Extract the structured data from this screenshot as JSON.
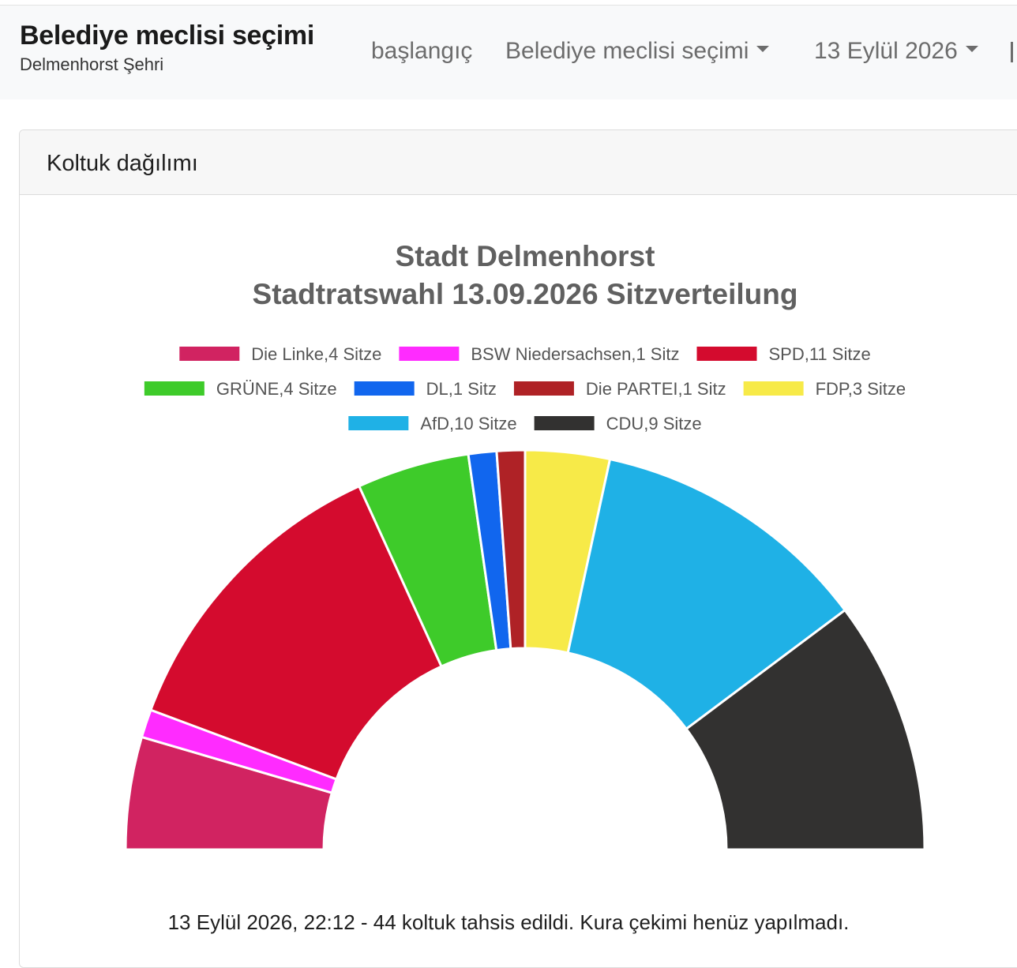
{
  "header": {
    "title": "Belediye meclisi seçimi",
    "subtitle": "Delmenhorst Şehri",
    "nav": [
      {
        "label": "başlangıç",
        "dropdown": false
      },
      {
        "label": "Belediye meclisi seçimi",
        "dropdown": true
      },
      {
        "label": "13 Eylül 2026",
        "dropdown": true
      }
    ]
  },
  "card": {
    "title": "Koltuk dağılımı"
  },
  "chart_data": {
    "type": "pie",
    "variant": "half-donut",
    "title": [
      "Stadt Delmenhorst",
      "Stadtratswahl 13.09.2026 Sitzverteilung"
    ],
    "legend_position": "top",
    "categories": [
      "Die Linke",
      "BSW Niedersachsen",
      "SPD",
      "GRÜNE",
      "DL",
      "Die PARTEI",
      "FDP",
      "AfD",
      "CDU"
    ],
    "values": [
      4,
      1,
      11,
      4,
      1,
      1,
      3,
      10,
      9
    ],
    "legend_labels": [
      "Die Linke,4 Sitze",
      "BSW Niedersachsen,1 Sitz",
      "SPD,11 Sitze",
      "GRÜNE,4 Sitze",
      "DL,1 Sitz",
      "Die PARTEI,1 Sitz",
      "FDP,3 Sitze",
      "AfD,10 Sitze",
      "CDU,9 Sitze"
    ],
    "colors": [
      "#d12361",
      "#ff2bff",
      "#d40b2e",
      "#3ecb2a",
      "#1166ee",
      "#af2226",
      "#f7ea48",
      "#1fb1e6",
      "#323130"
    ]
  },
  "footer": {
    "text": "13 Eylül 2026, 22:12 - 44 koltuk tahsis edildi. Kura çekimi henüz yapılmadı."
  }
}
